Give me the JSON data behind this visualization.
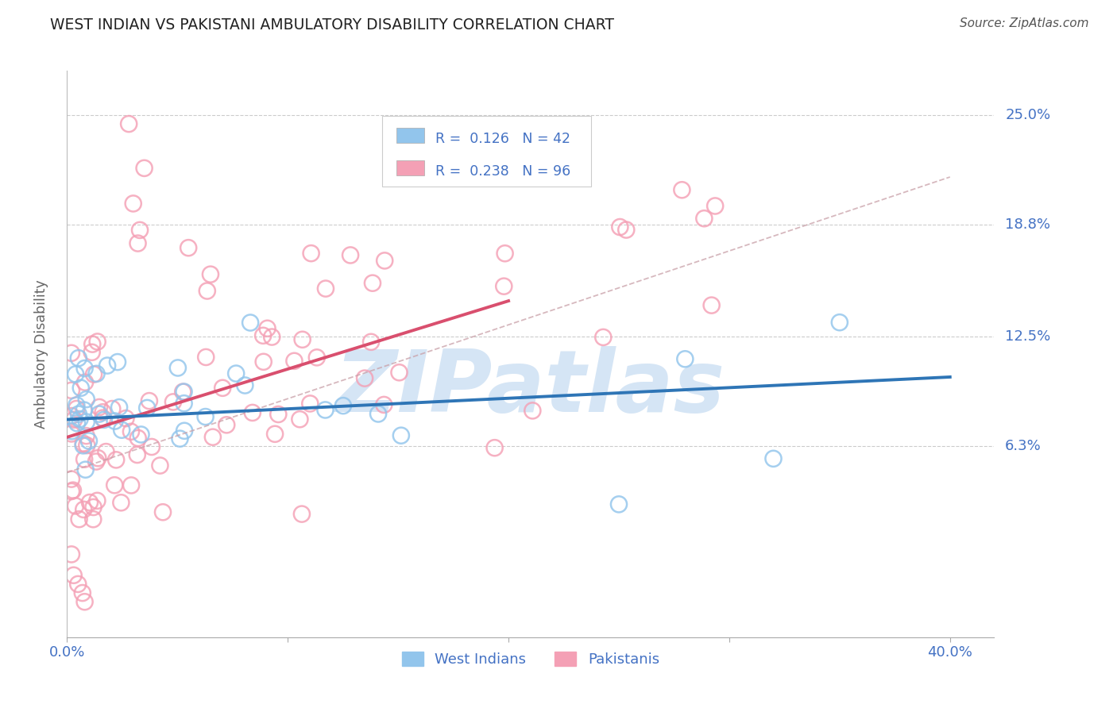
{
  "title": "WEST INDIAN VS PAKISTANI AMBULATORY DISABILITY CORRELATION CHART",
  "source": "Source: ZipAtlas.com",
  "ylabel": "Ambulatory Disability",
  "xlim": [
    0.0,
    0.42
  ],
  "ylim": [
    -0.045,
    0.275
  ],
  "ytick_vals": [
    0.063,
    0.125,
    0.188,
    0.25
  ],
  "ytick_labels": [
    "6.3%",
    "12.5%",
    "18.8%",
    "25.0%"
  ],
  "xtick_vals": [
    0.0,
    0.1,
    0.2,
    0.3,
    0.4
  ],
  "xtick_labels": [
    "0.0%",
    "",
    "",
    "",
    "40.0%"
  ],
  "west_indian_color": "#92C5EC",
  "pakistani_color": "#F4A0B5",
  "west_indian_line_color": "#2E75B6",
  "pakistani_line_color": "#D94F6E",
  "dashed_line_color": "#C9A0A8",
  "background_color": "#FFFFFF",
  "grid_color": "#CCCCCC",
  "axis_color": "#4472C4",
  "label_color": "#666666",
  "title_color": "#222222",
  "watermark_text": "ZIPatlas",
  "watermark_color": "#D5E5F5",
  "legend_R_west": "R =  0.126",
  "legend_N_west": "N = 42",
  "legend_R_pak": "R =  0.238",
  "legend_N_pak": "N = 96",
  "N_wi": 42,
  "N_pak": 96,
  "wi_line_x0": 0.0,
  "wi_line_y0": 0.078,
  "wi_line_x1": 0.4,
  "wi_line_y1": 0.102,
  "pak_line_x0": 0.0,
  "pak_line_y0": 0.068,
  "pak_line_x1": 0.2,
  "pak_line_y1": 0.145,
  "dashed_line_x0": 0.0,
  "dashed_line_y0": 0.048,
  "dashed_line_x1": 0.4,
  "dashed_line_y1": 0.215
}
